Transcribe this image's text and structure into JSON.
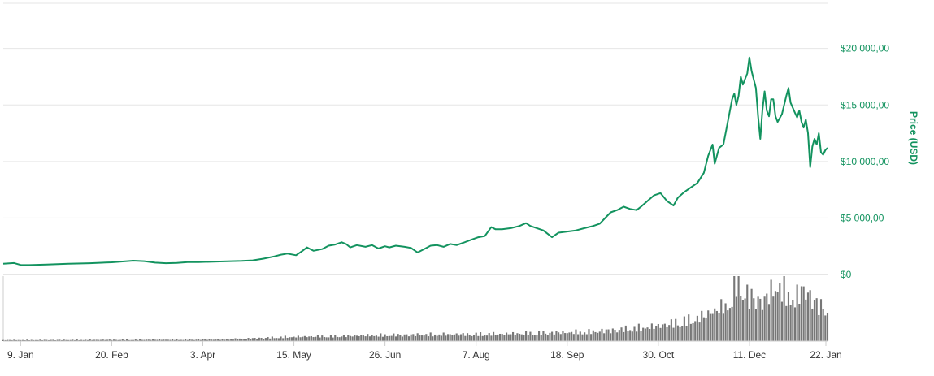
{
  "chart_data": {
    "type": "line",
    "title": "",
    "ylabel": "Price (USD)",
    "ylim": [
      0,
      24000
    ],
    "grid": true,
    "colors": {
      "price": "#13935f",
      "volume": "#777777",
      "grid": "#e6e6e6",
      "axis": "#cccccc"
    },
    "y_ticks": [
      {
        "value": 0,
        "label": "$0"
      },
      {
        "value": 5000,
        "label": "$5 000,00"
      },
      {
        "value": 10000,
        "label": "$10 000,00"
      },
      {
        "value": 15000,
        "label": "$15 000,00"
      },
      {
        "value": 20000,
        "label": "$20 000,00"
      }
    ],
    "x_range_days": [
      0,
      380
    ],
    "x_ticks": [
      {
        "day": 8,
        "label": "9. Jan"
      },
      {
        "day": 50,
        "label": "20. Feb"
      },
      {
        "day": 92,
        "label": "3. Apr"
      },
      {
        "day": 134,
        "label": "15. May"
      },
      {
        "day": 176,
        "label": "26. Jun"
      },
      {
        "day": 218,
        "label": "7. Aug"
      },
      {
        "day": 260,
        "label": "18. Sep"
      },
      {
        "day": 302,
        "label": "30. Oct"
      },
      {
        "day": 344,
        "label": "11. Dec"
      },
      {
        "day": 386,
        "label": "22. Jan"
      }
    ],
    "series": [
      {
        "name": "Price",
        "points": [
          [
            0,
            950
          ],
          [
            5,
            1010
          ],
          [
            8,
            850
          ],
          [
            12,
            830
          ],
          [
            20,
            880
          ],
          [
            30,
            950
          ],
          [
            40,
            1000
          ],
          [
            50,
            1080
          ],
          [
            55,
            1150
          ],
          [
            60,
            1220
          ],
          [
            65,
            1180
          ],
          [
            70,
            1050
          ],
          [
            75,
            1000
          ],
          [
            80,
            1020
          ],
          [
            85,
            1090
          ],
          [
            90,
            1100
          ],
          [
            100,
            1150
          ],
          [
            110,
            1200
          ],
          [
            115,
            1250
          ],
          [
            120,
            1400
          ],
          [
            125,
            1600
          ],
          [
            128,
            1750
          ],
          [
            131,
            1850
          ],
          [
            135,
            1700
          ],
          [
            138,
            2100
          ],
          [
            140,
            2400
          ],
          [
            143,
            2100
          ],
          [
            147,
            2250
          ],
          [
            150,
            2550
          ],
          [
            153,
            2650
          ],
          [
            156,
            2850
          ],
          [
            158,
            2700
          ],
          [
            160,
            2400
          ],
          [
            163,
            2600
          ],
          [
            167,
            2450
          ],
          [
            170,
            2600
          ],
          [
            173,
            2300
          ],
          [
            176,
            2500
          ],
          [
            178,
            2400
          ],
          [
            181,
            2550
          ],
          [
            185,
            2450
          ],
          [
            188,
            2350
          ],
          [
            191,
            1950
          ],
          [
            194,
            2250
          ],
          [
            197,
            2550
          ],
          [
            200,
            2600
          ],
          [
            203,
            2450
          ],
          [
            206,
            2700
          ],
          [
            209,
            2600
          ],
          [
            212,
            2800
          ],
          [
            216,
            3100
          ],
          [
            219,
            3300
          ],
          [
            222,
            3400
          ],
          [
            225,
            4200
          ],
          [
            227,
            4000
          ],
          [
            230,
            4000
          ],
          [
            234,
            4100
          ],
          [
            238,
            4300
          ],
          [
            241,
            4550
          ],
          [
            243,
            4300
          ],
          [
            246,
            4100
          ],
          [
            249,
            3900
          ],
          [
            251,
            3600
          ],
          [
            253,
            3300
          ],
          [
            256,
            3700
          ],
          [
            260,
            3800
          ],
          [
            264,
            3900
          ],
          [
            268,
            4100
          ],
          [
            272,
            4300
          ],
          [
            275,
            4500
          ],
          [
            278,
            5100
          ],
          [
            280,
            5500
          ],
          [
            283,
            5700
          ],
          [
            286,
            6000
          ],
          [
            289,
            5800
          ],
          [
            292,
            5700
          ],
          [
            294,
            6000
          ],
          [
            297,
            6500
          ],
          [
            300,
            7000
          ],
          [
            303,
            7200
          ],
          [
            306,
            6500
          ],
          [
            309,
            6100
          ],
          [
            311,
            6800
          ],
          [
            314,
            7300
          ],
          [
            317,
            7700
          ],
          [
            320,
            8100
          ],
          [
            323,
            9000
          ],
          [
            325,
            10500
          ],
          [
            327,
            11500
          ],
          [
            328,
            9800
          ],
          [
            330,
            11200
          ],
          [
            332,
            11500
          ],
          [
            334,
            13500
          ],
          [
            336,
            15500
          ],
          [
            337,
            16000
          ],
          [
            338,
            15000
          ],
          [
            339,
            15800
          ],
          [
            340,
            17500
          ],
          [
            341,
            16800
          ],
          [
            343,
            17800
          ],
          [
            344,
            19200
          ],
          [
            345,
            18000
          ],
          [
            347,
            16500
          ],
          [
            348,
            14000
          ],
          [
            349,
            12000
          ],
          [
            350,
            14500
          ],
          [
            351,
            16200
          ],
          [
            352,
            14500
          ],
          [
            353,
            14000
          ],
          [
            354,
            15500
          ],
          [
            355,
            15500
          ],
          [
            356,
            14000
          ],
          [
            357,
            13500
          ],
          [
            359,
            14200
          ],
          [
            361,
            15800
          ],
          [
            362,
            16500
          ],
          [
            363,
            15200
          ],
          [
            365,
            14300
          ],
          [
            366,
            13900
          ],
          [
            367,
            14500
          ],
          [
            368,
            13500
          ],
          [
            369,
            13000
          ],
          [
            370,
            13700
          ],
          [
            371,
            12500
          ],
          [
            372,
            9500
          ],
          [
            373,
            11300
          ],
          [
            374,
            12000
          ],
          [
            375,
            11500
          ],
          [
            376,
            12500
          ],
          [
            377,
            10800
          ],
          [
            378,
            10600
          ],
          [
            379,
            11000
          ],
          [
            380,
            11200
          ]
        ]
      },
      {
        "name": "Volume",
        "peaks": [
          [
            0,
            1
          ],
          [
            100,
            1.5
          ],
          [
            130,
            4
          ],
          [
            180,
            6
          ],
          [
            230,
            7
          ],
          [
            270,
            9
          ],
          [
            300,
            14
          ],
          [
            320,
            22
          ],
          [
            335,
            36
          ],
          [
            338,
            60
          ],
          [
            343,
            45
          ],
          [
            350,
            38
          ],
          [
            357,
            55
          ],
          [
            365,
            40
          ],
          [
            369,
            52
          ],
          [
            375,
            36
          ],
          [
            380,
            32
          ]
        ]
      }
    ]
  }
}
